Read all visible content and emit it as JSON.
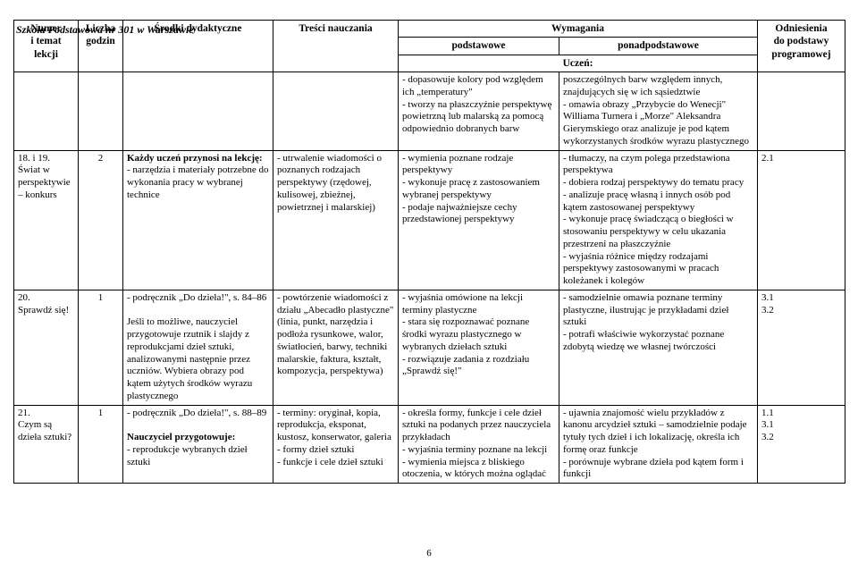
{
  "school_name": "Szkoła Podstawowa nr 301 w Warszawie",
  "page_number": "6",
  "header": {
    "col1": "Numer\ni temat lekcji",
    "col2": "Liczba\ngodzin",
    "col3": "Środki dydaktyczne",
    "col4": "Treści nauczania",
    "wymagania": "Wymagania",
    "podstawowe": "podstawowe",
    "ponadpodstawowe": "ponadpodstawowe",
    "uczen": "Uczeń:",
    "odniesienia": "Odniesienia\ndo podstawy\nprogramowej"
  },
  "rows": [
    {
      "c1": "",
      "c2": "",
      "c3": "",
      "c4": "",
      "c5": "- dopasowuje kolory pod względem ich „temperatury\"\n- tworzy na płaszczyźnie perspektywę powietrzną lub malarską za pomocą odpowiednio dobranych barw",
      "c6": "poszczególnych barw względem innych, znajdujących się w ich sąsiedztwie\n- omawia obrazy „Przybycie do Wenecji\" Williama Turnera i „Morze\" Aleksandra Gierymskiego oraz analizuje je pod kątem wykorzystanych środków wyrazu plastycznego",
      "c7": ""
    },
    {
      "c1": "18. i 19.\nŚwiat w perspektywie – konkurs",
      "c2": "2",
      "c3": "Każdy uczeń przynosi na lekcję:\n- narzędzia i materiały potrzebne do wykonania pracy w wybranej technice",
      "c4": "- utrwalenie wiadomości o poznanych rodzajach perspektywy (rzędowej, kulisowej, zbieżnej, powietrznej i malarskiej)",
      "c5": "- wymienia poznane rodzaje perspektywy\n- wykonuje pracę z zastosowaniem wybranej perspektywy\n- podaje najważniejsze cechy przedstawionej perspektywy",
      "c6": "- tłumaczy, na czym polega przedstawiona perspektywa\n- dobiera rodzaj perspektywy do tematu pracy\n- analizuje pracę własną i innych osób pod kątem zastosowanej perspektywy\n- wykonuje pracę świadczącą o biegłości w stosowaniu perspektywy w celu ukazania przestrzeni na płaszczyźnie\n- wyjaśnia różnice między rodzajami perspektywy zastosowanymi w pracach koleżanek i kolegów",
      "c7": "2.1"
    },
    {
      "c1": "20.\nSprawdź się!",
      "c2": "1",
      "c3": "- podręcznik „Do dzieła!\", s. 84–86\n\nJeśli to możliwe, nauczyciel przygotowuje rzutnik i slajdy z reprodukcjami dzieł sztuki, analizowanymi następnie przez uczniów. Wybiera obrazy pod kątem użytych środków wyrazu plastycznego",
      "c4": "- powtórzenie wiadomości z działu „Abecadło plastyczne\" (linia, punkt, narzędzia i podłoża rysunkowe, walor, światłocień, barwy, techniki malarskie, faktura, kształt, kompozycja, perspektywa)",
      "c5": "- wyjaśnia omówione na lekcji terminy plastyczne\n- stara się rozpoznawać poznane środki wyrazu plastycznego w wybranych dziełach sztuki\n- rozwiązuje zadania z rozdziału „Sprawdź się!\"",
      "c6": "- samodzielnie omawia poznane terminy plastyczne, ilustrując je przykładami dzieł sztuki\n- potrafi właściwie wykorzystać poznane zdobytą wiedzę we własnej twórczości",
      "c7": "3.1\n3.2"
    },
    {
      "c1": "21.\nCzym są dzieła sztuki?",
      "c2": "1",
      "c3": "- podręcznik „Do dzieła!\", s. 88–89\n\nNauczyciel przygotowuje:\n- reprodukcje wybranych dzieł sztuki",
      "c4": "- terminy: oryginał, kopia, reprodukcja, eksponat, kustosz, konserwator, galeria\n- formy dzieł sztuki\n- funkcje i cele dzieł sztuki",
      "c5": "- określa formy, funkcje i cele dzieł sztuki na podanych przez nauczyciela przykładach\n- wyjaśnia terminy poznane na lekcji\n- wymienia miejsca z bliskiego otoczenia, w których można oglądać",
      "c6": "- ujawnia znajomość wielu przykładów z kanonu arcydzieł sztuki – samodzielnie podaje tytuły tych dzieł i ich lokalizację, określa ich formę oraz funkcje\n- porównuje wybrane dzieła pod kątem form i funkcji",
      "c7": "1.1\n3.1\n3.2"
    }
  ]
}
